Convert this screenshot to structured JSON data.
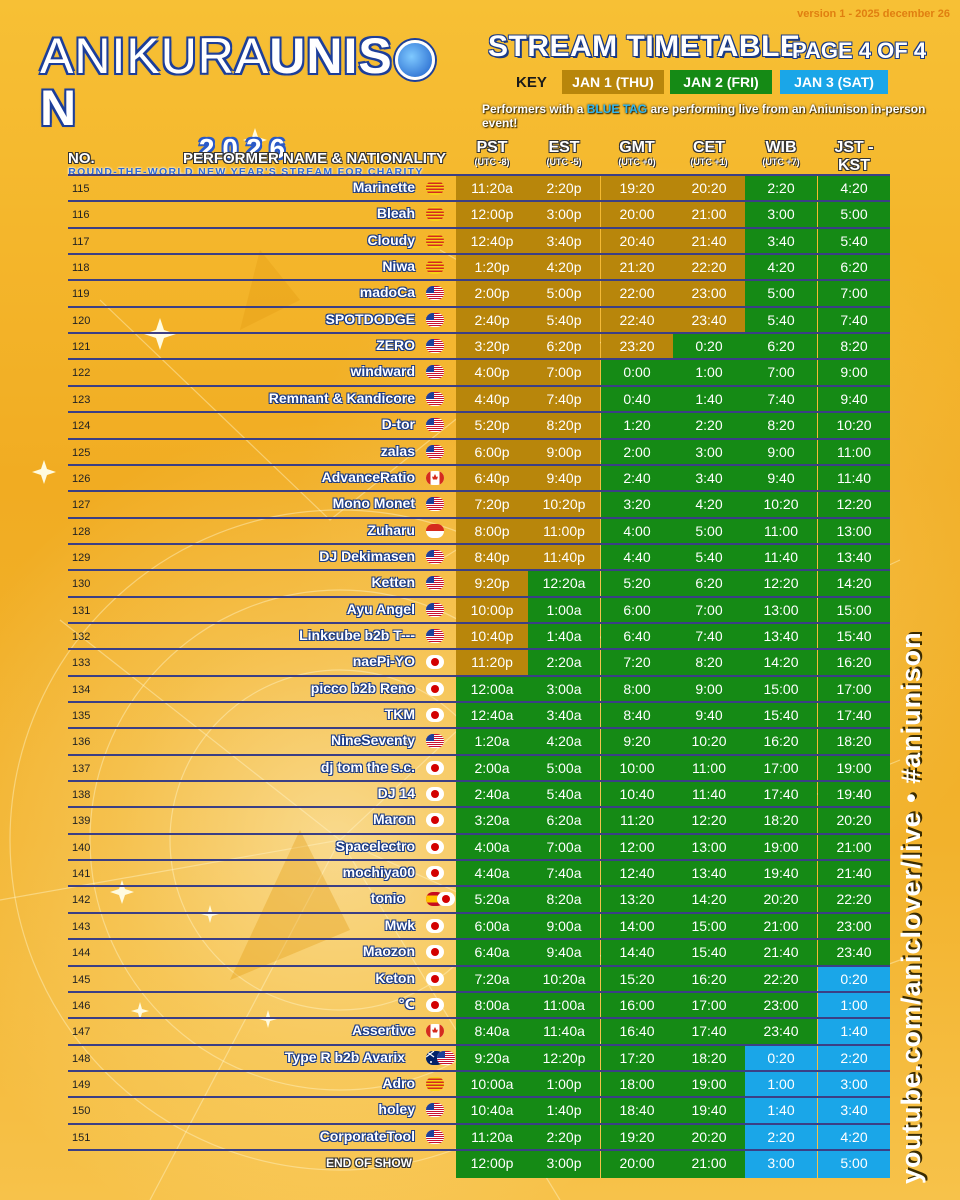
{
  "version_text": "version 1 - 2025 december 26",
  "logo": {
    "main_light": "ANIKURA",
    "main_bold": "UNIS",
    "main_bold2": "N",
    "year": "2026",
    "tagline": "ROUND-THE-WORLD NEW YEAR'S STREAM FOR CHARITY"
  },
  "header": {
    "title": "STREAM TIMETABLE",
    "page": "PAGE 4 OF 4"
  },
  "key": {
    "label": "KEY",
    "jan1": "JAN 1 (THU)",
    "jan2": "JAN 2 (FRI)",
    "jan3": "JAN 3 (SAT)"
  },
  "colors": {
    "jan1": "#b8860b",
    "jan2": "#158a15",
    "jan3": "#1aa6e8",
    "line": "#3b3f85",
    "name_outline": "#1a3a86"
  },
  "note": {
    "pre": "Performers with a ",
    "tag": "BLUE TAG",
    "post": " are performing live from an Aniunison in-person event!"
  },
  "columns": {
    "no": "NO.",
    "performer": "PERFORMER NAME & NATIONALITY",
    "timezones": [
      {
        "name": "PST",
        "utc": "(UTC -8)"
      },
      {
        "name": "EST",
        "utc": "(UTC -5)"
      },
      {
        "name": "GMT",
        "utc": "(UTC +0)"
      },
      {
        "name": "CET",
        "utc": "(UTC +1)"
      },
      {
        "name": "WIB",
        "utc": "(UTC +7)"
      },
      {
        "name": "JST - KST",
        "utc": "(UTC +9)"
      }
    ]
  },
  "rows": [
    {
      "no": "115",
      "name": "Marinette",
      "flags": [
        "catalonia"
      ],
      "times": [
        "11:20a",
        "2:20p",
        "19:20",
        "20:20",
        "2:20",
        "4:20"
      ],
      "days": [
        1,
        1,
        1,
        1,
        2,
        2
      ]
    },
    {
      "no": "116",
      "name": "Bleah",
      "flags": [
        "catalonia"
      ],
      "times": [
        "12:00p",
        "3:00p",
        "20:00",
        "21:00",
        "3:00",
        "5:00"
      ],
      "days": [
        1,
        1,
        1,
        1,
        2,
        2
      ]
    },
    {
      "no": "117",
      "name": "Cloudy",
      "flags": [
        "catalonia"
      ],
      "times": [
        "12:40p",
        "3:40p",
        "20:40",
        "21:40",
        "3:40",
        "5:40"
      ],
      "days": [
        1,
        1,
        1,
        1,
        2,
        2
      ]
    },
    {
      "no": "118",
      "name": "Niwa",
      "flags": [
        "catalonia"
      ],
      "times": [
        "1:20p",
        "4:20p",
        "21:20",
        "22:20",
        "4:20",
        "6:20"
      ],
      "days": [
        1,
        1,
        1,
        1,
        2,
        2
      ]
    },
    {
      "no": "119",
      "name": "madoCa",
      "flags": [
        "us"
      ],
      "times": [
        "2:00p",
        "5:00p",
        "22:00",
        "23:00",
        "5:00",
        "7:00"
      ],
      "days": [
        1,
        1,
        1,
        1,
        2,
        2
      ]
    },
    {
      "no": "120",
      "name": "SPOTDODGE",
      "flags": [
        "us"
      ],
      "times": [
        "2:40p",
        "5:40p",
        "22:40",
        "23:40",
        "5:40",
        "7:40"
      ],
      "days": [
        1,
        1,
        1,
        1,
        2,
        2
      ]
    },
    {
      "no": "121",
      "name": "ZERO",
      "flags": [
        "us"
      ],
      "times": [
        "3:20p",
        "6:20p",
        "23:20",
        "0:20",
        "6:20",
        "8:20"
      ],
      "days": [
        1,
        1,
        1,
        2,
        2,
        2
      ]
    },
    {
      "no": "122",
      "name": "windward",
      "flags": [
        "us"
      ],
      "times": [
        "4:00p",
        "7:00p",
        "0:00",
        "1:00",
        "7:00",
        "9:00"
      ],
      "days": [
        1,
        1,
        2,
        2,
        2,
        2
      ]
    },
    {
      "no": "123",
      "name": "Remnant & Kandicore",
      "flags": [
        "us"
      ],
      "times": [
        "4:40p",
        "7:40p",
        "0:40",
        "1:40",
        "7:40",
        "9:40"
      ],
      "days": [
        1,
        1,
        2,
        2,
        2,
        2
      ]
    },
    {
      "no": "124",
      "name": "D-tor",
      "flags": [
        "us"
      ],
      "times": [
        "5:20p",
        "8:20p",
        "1:20",
        "2:20",
        "8:20",
        "10:20"
      ],
      "days": [
        1,
        1,
        2,
        2,
        2,
        2
      ]
    },
    {
      "no": "125",
      "name": "zalas",
      "flags": [
        "us"
      ],
      "times": [
        "6:00p",
        "9:00p",
        "2:00",
        "3:00",
        "9:00",
        "11:00"
      ],
      "days": [
        1,
        1,
        2,
        2,
        2,
        2
      ]
    },
    {
      "no": "126",
      "name": "AdvanceRatio",
      "flags": [
        "ca"
      ],
      "times": [
        "6:40p",
        "9:40p",
        "2:40",
        "3:40",
        "9:40",
        "11:40"
      ],
      "days": [
        1,
        1,
        2,
        2,
        2,
        2
      ]
    },
    {
      "no": "127",
      "name": "Mono Monet",
      "flags": [
        "us"
      ],
      "times": [
        "7:20p",
        "10:20p",
        "3:20",
        "4:20",
        "10:20",
        "12:20"
      ],
      "days": [
        1,
        1,
        2,
        2,
        2,
        2
      ]
    },
    {
      "no": "128",
      "name": "Zuharu",
      "flags": [
        "id"
      ],
      "times": [
        "8:00p",
        "11:00p",
        "4:00",
        "5:00",
        "11:00",
        "13:00"
      ],
      "days": [
        1,
        1,
        2,
        2,
        2,
        2
      ]
    },
    {
      "no": "129",
      "name": "DJ Dekimasen",
      "flags": [
        "us"
      ],
      "times": [
        "8:40p",
        "11:40p",
        "4:40",
        "5:40",
        "11:40",
        "13:40"
      ],
      "days": [
        1,
        1,
        2,
        2,
        2,
        2
      ]
    },
    {
      "no": "130",
      "name": "Ketten",
      "flags": [
        "us"
      ],
      "times": [
        "9:20p",
        "12:20a",
        "5:20",
        "6:20",
        "12:20",
        "14:20"
      ],
      "days": [
        1,
        2,
        2,
        2,
        2,
        2
      ]
    },
    {
      "no": "131",
      "name": "Ayu Angel",
      "flags": [
        "us"
      ],
      "times": [
        "10:00p",
        "1:00a",
        "6:00",
        "7:00",
        "13:00",
        "15:00"
      ],
      "days": [
        1,
        2,
        2,
        2,
        2,
        2
      ]
    },
    {
      "no": "132",
      "name": "Linkcube b2b T---",
      "flags": [
        "us"
      ],
      "times": [
        "10:40p",
        "1:40a",
        "6:40",
        "7:40",
        "13:40",
        "15:40"
      ],
      "days": [
        1,
        2,
        2,
        2,
        2,
        2
      ]
    },
    {
      "no": "133",
      "name": "naePi-YO",
      "flags": [
        "jp"
      ],
      "times": [
        "11:20p",
        "2:20a",
        "7:20",
        "8:20",
        "14:20",
        "16:20"
      ],
      "days": [
        1,
        2,
        2,
        2,
        2,
        2
      ]
    },
    {
      "no": "134",
      "name": "picco b2b Reno",
      "flags": [
        "jp"
      ],
      "times": [
        "12:00a",
        "3:00a",
        "8:00",
        "9:00",
        "15:00",
        "17:00"
      ],
      "days": [
        2,
        2,
        2,
        2,
        2,
        2
      ]
    },
    {
      "no": "135",
      "name": "TKM",
      "flags": [
        "jp"
      ],
      "times": [
        "12:40a",
        "3:40a",
        "8:40",
        "9:40",
        "15:40",
        "17:40"
      ],
      "days": [
        2,
        2,
        2,
        2,
        2,
        2
      ]
    },
    {
      "no": "136",
      "name": "NineSeventy",
      "flags": [
        "us"
      ],
      "times": [
        "1:20a",
        "4:20a",
        "9:20",
        "10:20",
        "16:20",
        "18:20"
      ],
      "days": [
        2,
        2,
        2,
        2,
        2,
        2
      ]
    },
    {
      "no": "137",
      "name": "dj tom the s.c.",
      "flags": [
        "jp"
      ],
      "times": [
        "2:00a",
        "5:00a",
        "10:00",
        "11:00",
        "17:00",
        "19:00"
      ],
      "days": [
        2,
        2,
        2,
        2,
        2,
        2
      ]
    },
    {
      "no": "138",
      "name": "DJ 14",
      "flags": [
        "jp"
      ],
      "times": [
        "2:40a",
        "5:40a",
        "10:40",
        "11:40",
        "17:40",
        "19:40"
      ],
      "days": [
        2,
        2,
        2,
        2,
        2,
        2
      ]
    },
    {
      "no": "139",
      "name": "Maron",
      "flags": [
        "jp"
      ],
      "times": [
        "3:20a",
        "6:20a",
        "11:20",
        "12:20",
        "18:20",
        "20:20"
      ],
      "days": [
        2,
        2,
        2,
        2,
        2,
        2
      ]
    },
    {
      "no": "140",
      "name": "Spacelectro",
      "flags": [
        "jp"
      ],
      "times": [
        "4:00a",
        "7:00a",
        "12:00",
        "13:00",
        "19:00",
        "21:00"
      ],
      "days": [
        2,
        2,
        2,
        2,
        2,
        2
      ]
    },
    {
      "no": "141",
      "name": "mochiya00",
      "flags": [
        "jp"
      ],
      "times": [
        "4:40a",
        "7:40a",
        "12:40",
        "13:40",
        "19:40",
        "21:40"
      ],
      "days": [
        2,
        2,
        2,
        2,
        2,
        2
      ]
    },
    {
      "no": "142",
      "name": "tonio",
      "flags": [
        "es",
        "jp"
      ],
      "times": [
        "5:20a",
        "8:20a",
        "13:20",
        "14:20",
        "20:20",
        "22:20"
      ],
      "days": [
        2,
        2,
        2,
        2,
        2,
        2
      ]
    },
    {
      "no": "143",
      "name": "Mwk",
      "flags": [
        "jp"
      ],
      "times": [
        "6:00a",
        "9:00a",
        "14:00",
        "15:00",
        "21:00",
        "23:00"
      ],
      "days": [
        2,
        2,
        2,
        2,
        2,
        2
      ]
    },
    {
      "no": "144",
      "name": "Maozon",
      "flags": [
        "jp"
      ],
      "times": [
        "6:40a",
        "9:40a",
        "14:40",
        "15:40",
        "21:40",
        "23:40"
      ],
      "days": [
        2,
        2,
        2,
        2,
        2,
        2
      ]
    },
    {
      "no": "145",
      "name": "Keton",
      "flags": [
        "jp"
      ],
      "times": [
        "7:20a",
        "10:20a",
        "15:20",
        "16:20",
        "22:20",
        "0:20"
      ],
      "days": [
        2,
        2,
        2,
        2,
        2,
        3
      ]
    },
    {
      "no": "146",
      "name": "℃",
      "flags": [
        "jp"
      ],
      "times": [
        "8:00a",
        "11:00a",
        "16:00",
        "17:00",
        "23:00",
        "1:00"
      ],
      "days": [
        2,
        2,
        2,
        2,
        2,
        3
      ]
    },
    {
      "no": "147",
      "name": "Assertive",
      "flags": [
        "ca"
      ],
      "times": [
        "8:40a",
        "11:40a",
        "16:40",
        "17:40",
        "23:40",
        "1:40"
      ],
      "days": [
        2,
        2,
        2,
        2,
        2,
        3
      ]
    },
    {
      "no": "148",
      "name": "Type R b2b Avarix",
      "flags": [
        "au",
        "us"
      ],
      "times": [
        "9:20a",
        "12:20p",
        "17:20",
        "18:20",
        "0:20",
        "2:20"
      ],
      "days": [
        2,
        2,
        2,
        2,
        3,
        3
      ]
    },
    {
      "no": "149",
      "name": "Adro",
      "flags": [
        "catalonia"
      ],
      "times": [
        "10:00a",
        "1:00p",
        "18:00",
        "19:00",
        "1:00",
        "3:00"
      ],
      "days": [
        2,
        2,
        2,
        2,
        3,
        3
      ]
    },
    {
      "no": "150",
      "name": "holey",
      "flags": [
        "us"
      ],
      "times": [
        "10:40a",
        "1:40p",
        "18:40",
        "19:40",
        "1:40",
        "3:40"
      ],
      "days": [
        2,
        2,
        2,
        2,
        3,
        3
      ]
    },
    {
      "no": "151",
      "name": "CorporateTool",
      "flags": [
        "us"
      ],
      "times": [
        "11:20a",
        "2:20p",
        "19:20",
        "20:20",
        "2:20",
        "4:20"
      ],
      "days": [
        2,
        2,
        2,
        2,
        3,
        3
      ]
    }
  ],
  "end_row": {
    "label": "END OF SHOW",
    "times": [
      "12:00p",
      "3:00p",
      "20:00",
      "21:00",
      "3:00",
      "5:00"
    ],
    "days": [
      2,
      2,
      2,
      2,
      3,
      3
    ]
  },
  "side_text": "youtube.com/aniclover/live • #aniunison"
}
